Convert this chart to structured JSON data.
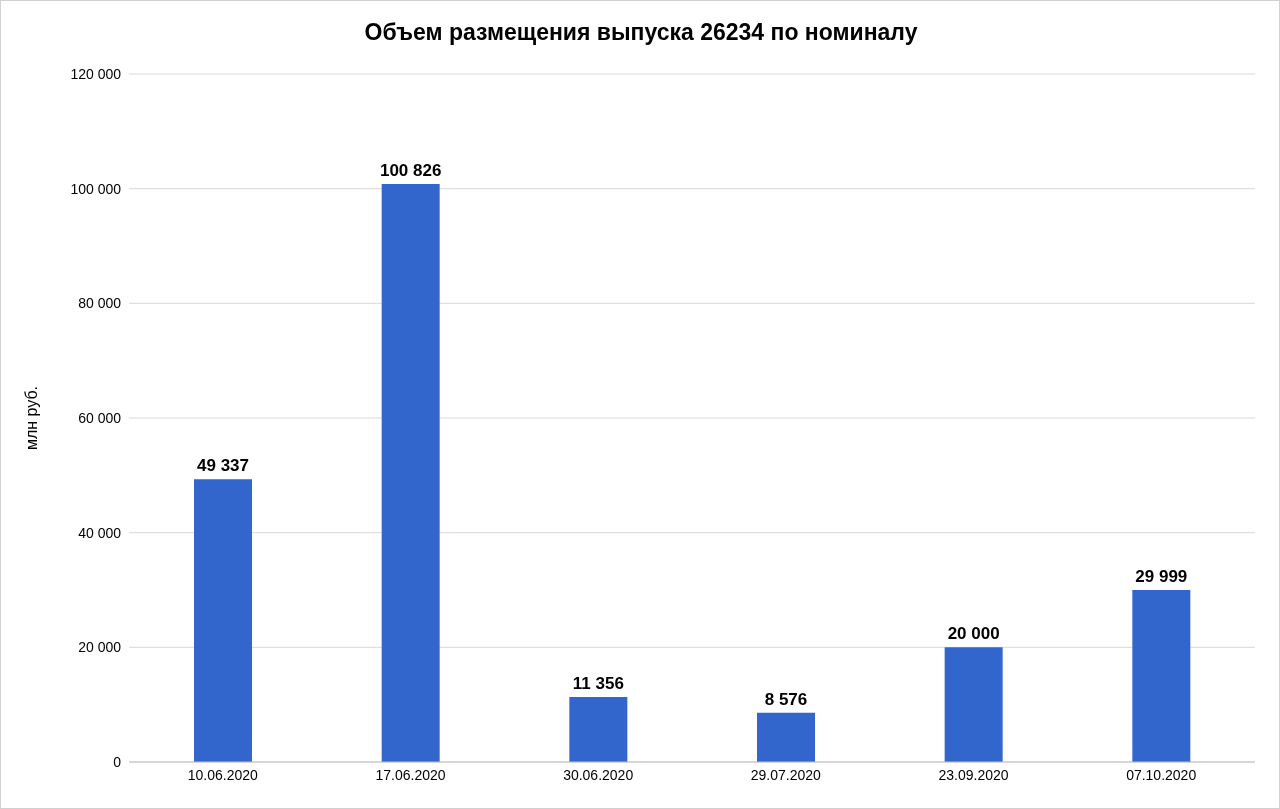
{
  "chart_data": {
    "type": "bar",
    "title": "Объем размещения выпуска 26234 по номиналу",
    "ylabel": "млн руб.",
    "categories": [
      "10.06.2020",
      "17.06.2020",
      "30.06.2020",
      "29.07.2020",
      "23.09.2020",
      "07.10.2020"
    ],
    "values": [
      49337,
      100826,
      11356,
      8576,
      20000,
      29999
    ],
    "value_labels": [
      "49 337",
      "100 826",
      "11 356",
      "8 576",
      "20 000",
      "29 999"
    ],
    "color": "#3366cc",
    "ylim": [
      0,
      120000
    ],
    "yticks": [
      0,
      {
        "value": 20000,
        "label": "20 000"
      },
      {
        "value": 40000,
        "label": "40 000"
      },
      {
        "value": 60000,
        "label": "60 000"
      },
      {
        "value": 80000,
        "label": "80 000"
      },
      {
        "value": 100000,
        "label": "100 000"
      },
      {
        "value": 120000,
        "label": "120 000"
      }
    ],
    "grid": "y",
    "legend": false
  }
}
